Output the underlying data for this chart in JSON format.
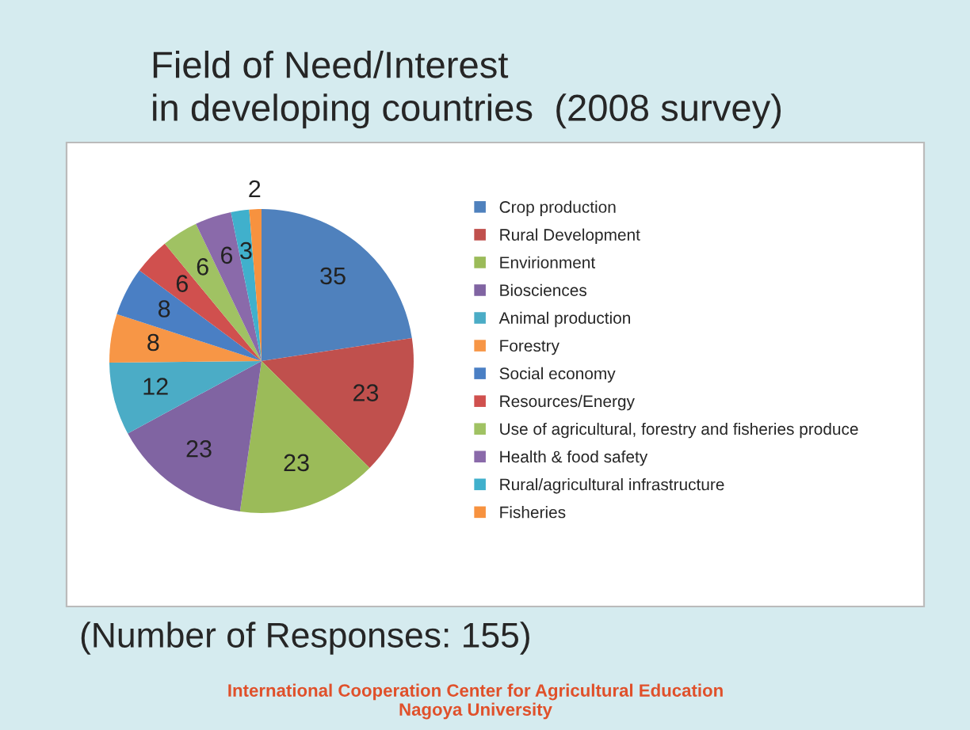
{
  "chart_data": {
    "type": "pie",
    "title": "Field of Need/Interest\nin developing countries  (2008 survey)",
    "categories": [
      "Crop production",
      "Rural Development",
      "Envirionment",
      "Biosciences",
      "Animal production",
      "Forestry",
      "Social economy",
      "Resources/Energy",
      "Use of agricultural, forestry and fisheries produce",
      "Health & food safety",
      "Rural/agricultural infrastructure",
      "Fisheries"
    ],
    "values": [
      35,
      23,
      23,
      23,
      12,
      8,
      8,
      6,
      6,
      6,
      3,
      2
    ],
    "colors": [
      "#4f81bd",
      "#c0504d",
      "#9bbb59",
      "#8064a2",
      "#4bacc6",
      "#f79646",
      "#4a7fc4",
      "#d0504e",
      "#a0c263",
      "#8a6aaa",
      "#40b0cc",
      "#f7923f"
    ],
    "data_labels": true,
    "legend": "right",
    "annotations": [
      "(Number of Responses: 155)",
      "International Cooperation Center for Agricultural Education\nNagoya University"
    ]
  }
}
